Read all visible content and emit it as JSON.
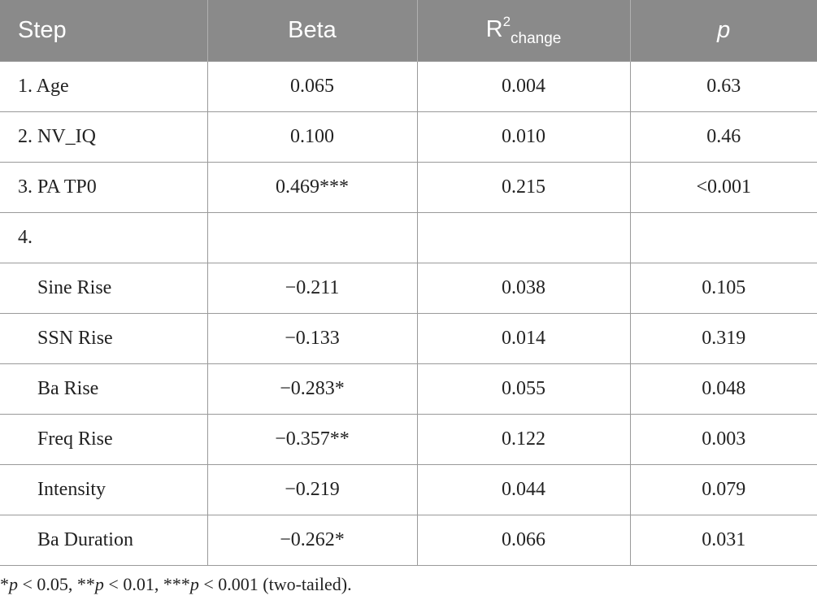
{
  "table": {
    "headers": {
      "step": "Step",
      "beta": "Beta",
      "r2_base": "R",
      "r2_sup": "2",
      "r2_sub": "change",
      "p": "p"
    },
    "rows": [
      {
        "step": "1. Age",
        "beta": "0.065",
        "r2": "0.004",
        "p": "0.63"
      },
      {
        "step": "2. NV_IQ",
        "beta": "0.100",
        "r2": "0.010",
        "p": "0.46"
      },
      {
        "step": "3. PA TP0",
        "beta": "0.469***",
        "r2": "0.215",
        "p": "<0.001"
      },
      {
        "step": "4.",
        "beta": "",
        "r2": "",
        "p": ""
      },
      {
        "step": "Sine Rise",
        "beta": "−0.211",
        "r2": "0.038",
        "p": "0.105"
      },
      {
        "step": "SSN Rise",
        "beta": "−0.133",
        "r2": "0.014",
        "p": "0.319"
      },
      {
        "step": "Ba Rise",
        "beta": "−0.283*",
        "r2": "0.055",
        "p": "0.048"
      },
      {
        "step": "Freq Rise",
        "beta": "−0.357**",
        "r2": "0.122",
        "p": "0.003"
      },
      {
        "step": "Intensity",
        "beta": "−0.219",
        "r2": "0.044",
        "p": "0.079"
      },
      {
        "step": "Ba Duration",
        "beta": "−0.262*",
        "r2": "0.066",
        "p": "0.031"
      }
    ]
  },
  "footnote": {
    "s1": "*",
    "p1": "p",
    "t1": " < 0.05, **",
    "p2": "p",
    "t2": " < 0.01, ***",
    "p3": "p",
    "t3": " < 0.001 (two-tailed)."
  },
  "colors": {
    "header_bg": "#8a8a8a",
    "header_text": "#ffffff",
    "grid": "#9a9a9a"
  }
}
